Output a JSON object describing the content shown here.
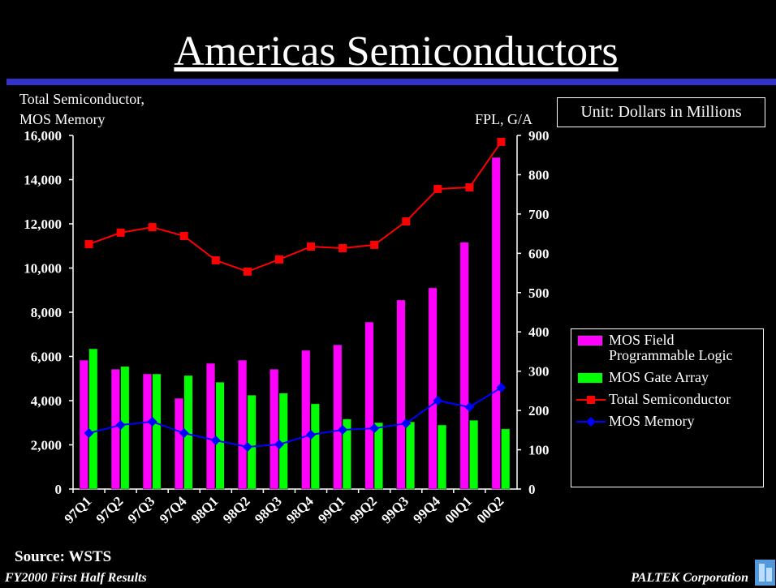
{
  "chart_data": {
    "type": "bar_line",
    "title": "Americas Semiconductors",
    "y_label_lines": [
      "Total Semiconductor,",
      "MOS Memory"
    ],
    "y2_label": "FPL, G/A",
    "unit_note": "Unit: Dollars in Millions",
    "categories": [
      "97Q1",
      "97Q2",
      "97Q3",
      "97Q4",
      "98Q1",
      "98Q2",
      "98Q3",
      "98Q4",
      "99Q1",
      "99Q2",
      "99Q3",
      "99Q4",
      "00Q1",
      "00Q2"
    ],
    "series": [
      {
        "name": "MOS Field Programmable Logic",
        "type": "bar",
        "axis": "y2",
        "color": "#ff00ff",
        "values": [
          328,
          305,
          293,
          231,
          320,
          328,
          305,
          353,
          367,
          425,
          481,
          512,
          628,
          844
        ]
      },
      {
        "name": "MOS Gate Array",
        "type": "bar",
        "axis": "y2",
        "color": "#00ff00",
        "values": [
          357,
          312,
          293,
          289,
          272,
          239,
          244,
          217,
          178,
          169,
          171,
          163,
          175,
          153
        ]
      },
      {
        "name": "Total Semiconductor",
        "type": "line",
        "marker": "square",
        "color": "#ff0000",
        "values": [
          11080,
          11600,
          11850,
          11450,
          10350,
          9840,
          10390,
          10970,
          10900,
          11050,
          12110,
          13580,
          13650,
          15710
        ]
      },
      {
        "name": "MOS Memory",
        "type": "line",
        "marker": "diamond",
        "color": "#0000ff",
        "values": [
          2530,
          2900,
          3050,
          2530,
          2200,
          1910,
          2020,
          2460,
          2680,
          2750,
          2970,
          4000,
          3710,
          4590
        ]
      }
    ],
    "ylim": [
      0,
      16000
    ],
    "yticks": [
      0,
      {
        "value": 2000,
        "label": "2,000"
      },
      {
        "value": 4000,
        "label": "4,000"
      },
      {
        "value": 6000,
        "label": "6,000"
      },
      {
        "value": 8000,
        "label": "8,000"
      },
      {
        "value": 10000,
        "label": "10,000"
      },
      {
        "value": 12000,
        "label": "12,000"
      },
      {
        "value": 14000,
        "label": "14,000"
      },
      {
        "value": 16000,
        "label": "16,000"
      }
    ],
    "y2lim": [
      0,
      900
    ],
    "y2ticks": [
      0,
      100,
      200,
      300,
      400,
      500,
      600,
      700,
      800,
      900
    ],
    "legend": "right",
    "grid": false,
    "source": "Source: WSTS",
    "footer_left": "FY2000 First Half Results",
    "footer_right": "PALTEK Corporation"
  }
}
